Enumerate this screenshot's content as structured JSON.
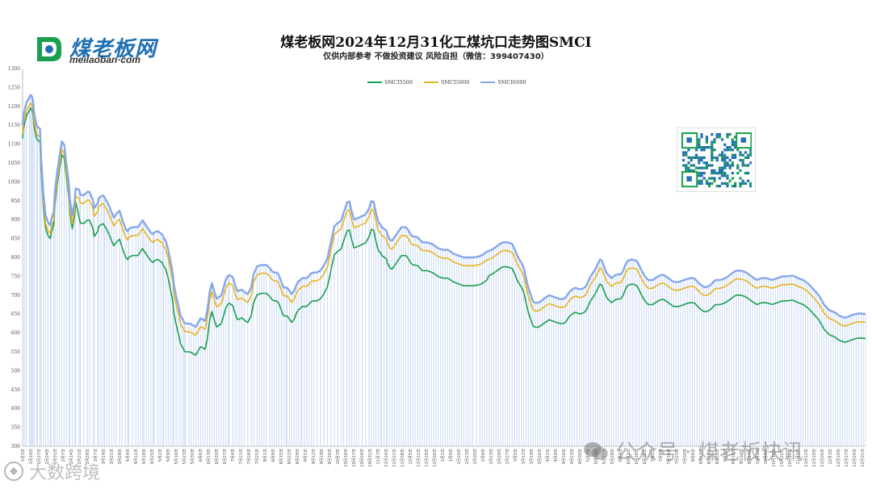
{
  "header": {
    "logo_cn": "煤老板网",
    "logo_en": "meilaoban·com",
    "title": "煤老板网2024年12月31化工煤坑口走势图SMCI",
    "subtitle": "仅供内部参考 不做投资建议 风险自担（微信：399407430）"
  },
  "watermarks": {
    "right": "公众号 · 煤老板快讯",
    "left": "大数跨境"
  },
  "colors": {
    "SMCI5500": "#1a9e4f",
    "SMCI5800": "#e8b320",
    "SMCI6000": "#86a6ec",
    "fill": "#c9d9f5"
  },
  "chart_data": {
    "type": "line",
    "title": "煤老板网2024年12月31化工煤坑口走势图SMCI",
    "ylim": [
      300,
      1300
    ],
    "yticks": [
      300,
      350,
      400,
      450,
      500,
      550,
      600,
      650,
      700,
      750,
      800,
      850,
      900,
      950,
      1000,
      1050,
      1100,
      1150,
      1200,
      1250,
      1300
    ],
    "grid": false,
    "legend_position": "top-center",
    "x_axis_labels": [
      "1月3日",
      "1月10日",
      "1月17日",
      "1月24日",
      "1月31日",
      "2月7日",
      "2月14日",
      "2月21日",
      "2月28日",
      "3月7日",
      "3月14日",
      "3月21日",
      "3月28日",
      "4月4日",
      "4月11日",
      "4月18日",
      "4月25日",
      "5月2日",
      "5月9日",
      "5月16日",
      "5月23日",
      "5月30日",
      "6月6日",
      "6月13日",
      "6月20日",
      "6月27日",
      "7月4日",
      "7月11日",
      "7月18日",
      "7月25日",
      "8月1日",
      "8月8日",
      "8月15日",
      "8月22日",
      "8月29日",
      "9月5日",
      "9月12日",
      "9月19日",
      "9月26日",
      "10月3日",
      "10月10日",
      "10月17日",
      "10月24日",
      "10月31日",
      "11月7日",
      "11月14日",
      "11月21日",
      "11月28日",
      "12月5日",
      "12月12日",
      "12月19日",
      "12月26日",
      "1月2日",
      "1月9日",
      "1月16日",
      "1月23日",
      "1月30日",
      "2月6日",
      "2月13日",
      "2月20日",
      "2月27日",
      "3月5日",
      "3月12日",
      "3月19日",
      "3月26日",
      "4月2日",
      "4月9日",
      "4月16日",
      "4月23日",
      "4月30日",
      "5月7日",
      "5月14日",
      "5月21日",
      "5月28日",
      "6月4日",
      "6月11日",
      "6月18日",
      "6月25日",
      "7月2日",
      "7月9日",
      "7月16日",
      "7月23日",
      "7月30日",
      "8月6日",
      "8月13日",
      "8月20日",
      "8月27日",
      "9月3日",
      "9月10日",
      "9月17日",
      "9月24日",
      "10月1日",
      "10月8日",
      "10月15日",
      "10月22日",
      "10月29日",
      "11月5日",
      "11月12日",
      "11月19日",
      "11月26日",
      "12月3日",
      "12月10日",
      "12月17日",
      "12月24日",
      "12月31日"
    ],
    "x": [
      0,
      0.5,
      2,
      3.5,
      6,
      7,
      8,
      9,
      10,
      12,
      13,
      15,
      16,
      18,
      20,
      22,
      24,
      25,
      27,
      28,
      30,
      32,
      34,
      36,
      38,
      40,
      41,
      43,
      45,
      46,
      49,
      50,
      53,
      56,
      58,
      61,
      62,
      65,
      66,
      68,
      70,
      71,
      73,
      75,
      77,
      79,
      81,
      84,
      86,
      89,
      91,
      92,
      95,
      98,
      100,
      102,
      104,
      105,
      107,
      109,
      111,
      113,
      114,
      117,
      119,
      121,
      122,
      124,
      126,
      128,
      130,
      131,
      133,
      135,
      137,
      139,
      140,
      141,
      144,
      146,
      148,
      150,
      152,
      154,
      156,
      158,
      160,
      162,
      164,
      166,
      168,
      170,
      172,
      174,
      176,
      178,
      179,
      182,
      184,
      186,
      188,
      190,
      192,
      195,
      198,
      200,
      203,
      205,
      207,
      209,
      211,
      214,
      216,
      218,
      220,
      222,
      224,
      226,
      228,
      229,
      231,
      233,
      235,
      237,
      239,
      241,
      242,
      244,
      246,
      248,
      250,
      252,
      255,
      258,
      261,
      264,
      267,
      270,
      273,
      276,
      278,
      281,
      283,
      285,
      287,
      289,
      291,
      294,
      297,
      300,
      302,
      304,
      306,
      308,
      310,
      311,
      313,
      315,
      316,
      318,
      320,
      322,
      324,
      326,
      328,
      330,
      332,
      334,
      336,
      338,
      340,
      342,
      344,
      346,
      348,
      350,
      352,
      354,
      356,
      358,
      360,
      362,
      364,
      366,
      368,
      370,
      372,
      374,
      376,
      378,
      380,
      382,
      384,
      386,
      388,
      390,
      393,
      396,
      398,
      400,
      402,
      404,
      406,
      408,
      410,
      412,
      414,
      416,
      418,
      420,
      422,
      424,
      426,
      428,
      430,
      432,
      434,
      436,
      438,
      440,
      442,
      444,
      446,
      448,
      450,
      452,
      454,
      456,
      458,
      460,
      462,
      464,
      466,
      468,
      470,
      472,
      474,
      476,
      478,
      480,
      482,
      484,
      486,
      488,
      490,
      492,
      494,
      496,
      498,
      500,
      502,
      504,
      506,
      508,
      510,
      512,
      514,
      516,
      518,
      520,
      522,
      524,
      526,
      528,
      530,
      532,
      534,
      536,
      538,
      540,
      542,
      544,
      546,
      548,
      550,
      552,
      554,
      556,
      558,
      560,
      562,
      564,
      566,
      568,
      570,
      572,
      574,
      576,
      578,
      580,
      582,
      584,
      586,
      588,
      590,
      592,
      594,
      596,
      598,
      600,
      602,
      604,
      606,
      608,
      610,
      612,
      614,
      616,
      618,
      620,
      622,
      624,
      626,
      628,
      630,
      632,
      634,
      636,
      638,
      640,
      642,
      644,
      646,
      648,
      650,
      652,
      654,
      656,
      658,
      660,
      662,
      664,
      666,
      668,
      670,
      672,
      674,
      676,
      678,
      680,
      682,
      684,
      686,
      688,
      690,
      692,
      694,
      696,
      698,
      700,
      702,
      704,
      706,
      708,
      710,
      712,
      714,
      716,
      718,
      720,
      722,
      724,
      726,
      728,
      730
    ],
    "series": [
      {
        "name": "SMCI5500"
      },
      {
        "name": "SMCI5800"
      },
      {
        "name": "SMCI6000"
      }
    ]
  }
}
